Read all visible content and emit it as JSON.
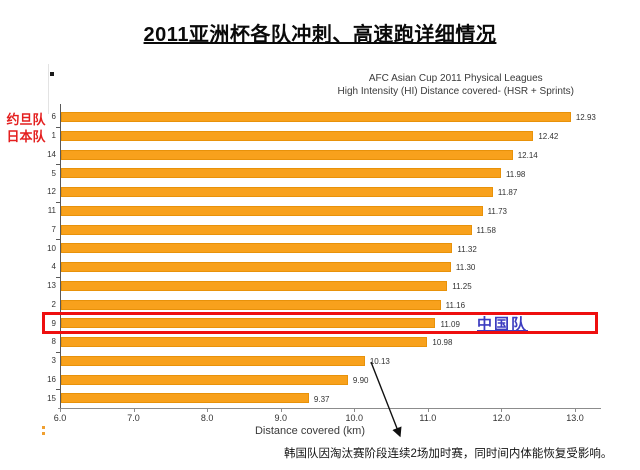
{
  "page": {
    "title": "2011亚洲杯各队冲刺、高速跑详细情况",
    "footnote": "韩国队因淘汰赛阶段连续2场加时赛，同时间内体能恢复受影响。"
  },
  "annotations": {
    "left_label_line1": "约旦队",
    "left_label_line2": "日本队",
    "highlight_label": "中国队"
  },
  "chart_data": {
    "type": "bar",
    "orientation": "horizontal",
    "title_line1": "AFC Asian Cup 2011 Physical Leagues",
    "title_line2": "High Intensity (HI) Distance covered- (HSR + Sprints)",
    "xlabel": "Distance covered (km)",
    "xlim": [
      6.0,
      13.0
    ],
    "x_ticks": [
      "6.0",
      "7.0",
      "8.0",
      "9.0",
      "10.0",
      "11.0",
      "12.0",
      "13.0"
    ],
    "categories": [
      "6",
      "1",
      "14",
      "5",
      "12",
      "11",
      "7",
      "10",
      "4",
      "13",
      "2",
      "9",
      "8",
      "3",
      "16",
      "15"
    ],
    "values": [
      12.93,
      12.42,
      12.14,
      11.98,
      11.87,
      11.73,
      11.58,
      11.32,
      11.3,
      11.25,
      11.16,
      11.09,
      10.98,
      10.13,
      9.9,
      9.37
    ],
    "value_labels": [
      "12.93",
      "12.42",
      "12.14",
      "11.98",
      "11.87",
      "11.73",
      "11.58",
      "11.32",
      "11.30",
      "11.25",
      "11.16",
      "11.09",
      "10.98",
      "10.13",
      "9.90",
      "9.37"
    ],
    "highlighted_category": "9",
    "annotated_category": "3",
    "grid": false,
    "legend": "none",
    "bar_color": "#F8A11C"
  }
}
